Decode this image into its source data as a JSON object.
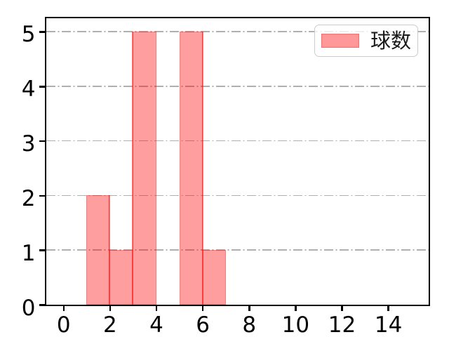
{
  "chart_data": {
    "type": "bar",
    "title": "",
    "xlabel": "",
    "ylabel": "",
    "series": [
      {
        "name": "球数",
        "bins": [
          {
            "x_start": 1,
            "x_end": 2,
            "count": 2
          },
          {
            "x_start": 2,
            "x_end": 3,
            "count": 1
          },
          {
            "x_start": 3,
            "x_end": 4,
            "count": 5
          },
          {
            "x_start": 5,
            "x_end": 6,
            "count": 5
          },
          {
            "x_start": 6,
            "x_end": 7,
            "count": 1
          }
        ]
      }
    ],
    "legend": {
      "labels": [
        "球数"
      ],
      "position": "upper right"
    },
    "xticks": [
      0,
      2,
      4,
      6,
      8,
      10,
      12,
      14
    ],
    "yticks": [
      0,
      1,
      2,
      3,
      4,
      5
    ],
    "xlim": [
      -0.75,
      15.75
    ],
    "ylim": [
      0,
      5.25
    ],
    "grid": {
      "axis": "y",
      "linestyle": "dash-dot",
      "color": "#b0b0b0"
    },
    "colors": {
      "bar_fill": "rgba(255,0,0,0.38)",
      "bar_fill_hex": "#ff9999",
      "bar_separator": "rgba(255,0,0,0.5)",
      "spine": "#000000",
      "tick_label": "#000000",
      "legend_border": "#cccccc",
      "legend_swatch_fill": "#ff9999",
      "legend_swatch_edge": "#ff6a6a"
    }
  }
}
